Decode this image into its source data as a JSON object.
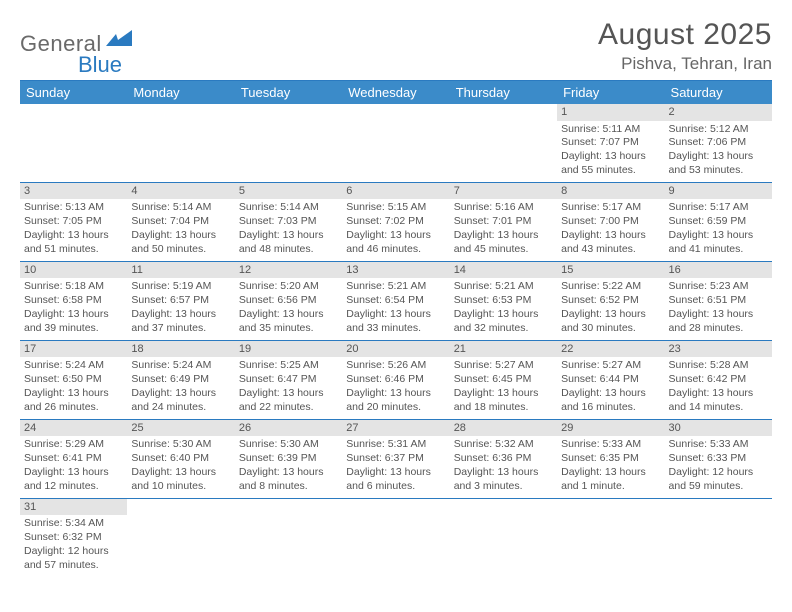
{
  "brand": {
    "part1": "General",
    "part2": "Blue"
  },
  "title": "August 2025",
  "location": "Pishva, Tehran, Iran",
  "colors": {
    "header_bg": "#3b8bc9",
    "accent": "#2a7ac0",
    "daynum_bg": "#e4e4e4",
    "text": "#5a5a5a"
  },
  "fonts": {
    "title_size": 30,
    "location_size": 17,
    "header_size": 13,
    "cell_size": 10.5
  },
  "weekdays": [
    "Sunday",
    "Monday",
    "Tuesday",
    "Wednesday",
    "Thursday",
    "Friday",
    "Saturday"
  ],
  "weeks": [
    [
      null,
      null,
      null,
      null,
      null,
      {
        "d": "1",
        "sr": "Sunrise: 5:11 AM",
        "ss": "Sunset: 7:07 PM",
        "dl1": "Daylight: 13 hours",
        "dl2": "and 55 minutes."
      },
      {
        "d": "2",
        "sr": "Sunrise: 5:12 AM",
        "ss": "Sunset: 7:06 PM",
        "dl1": "Daylight: 13 hours",
        "dl2": "and 53 minutes."
      }
    ],
    [
      {
        "d": "3",
        "sr": "Sunrise: 5:13 AM",
        "ss": "Sunset: 7:05 PM",
        "dl1": "Daylight: 13 hours",
        "dl2": "and 51 minutes."
      },
      {
        "d": "4",
        "sr": "Sunrise: 5:14 AM",
        "ss": "Sunset: 7:04 PM",
        "dl1": "Daylight: 13 hours",
        "dl2": "and 50 minutes."
      },
      {
        "d": "5",
        "sr": "Sunrise: 5:14 AM",
        "ss": "Sunset: 7:03 PM",
        "dl1": "Daylight: 13 hours",
        "dl2": "and 48 minutes."
      },
      {
        "d": "6",
        "sr": "Sunrise: 5:15 AM",
        "ss": "Sunset: 7:02 PM",
        "dl1": "Daylight: 13 hours",
        "dl2": "and 46 minutes."
      },
      {
        "d": "7",
        "sr": "Sunrise: 5:16 AM",
        "ss": "Sunset: 7:01 PM",
        "dl1": "Daylight: 13 hours",
        "dl2": "and 45 minutes."
      },
      {
        "d": "8",
        "sr": "Sunrise: 5:17 AM",
        "ss": "Sunset: 7:00 PM",
        "dl1": "Daylight: 13 hours",
        "dl2": "and 43 minutes."
      },
      {
        "d": "9",
        "sr": "Sunrise: 5:17 AM",
        "ss": "Sunset: 6:59 PM",
        "dl1": "Daylight: 13 hours",
        "dl2": "and 41 minutes."
      }
    ],
    [
      {
        "d": "10",
        "sr": "Sunrise: 5:18 AM",
        "ss": "Sunset: 6:58 PM",
        "dl1": "Daylight: 13 hours",
        "dl2": "and 39 minutes."
      },
      {
        "d": "11",
        "sr": "Sunrise: 5:19 AM",
        "ss": "Sunset: 6:57 PM",
        "dl1": "Daylight: 13 hours",
        "dl2": "and 37 minutes."
      },
      {
        "d": "12",
        "sr": "Sunrise: 5:20 AM",
        "ss": "Sunset: 6:56 PM",
        "dl1": "Daylight: 13 hours",
        "dl2": "and 35 minutes."
      },
      {
        "d": "13",
        "sr": "Sunrise: 5:21 AM",
        "ss": "Sunset: 6:54 PM",
        "dl1": "Daylight: 13 hours",
        "dl2": "and 33 minutes."
      },
      {
        "d": "14",
        "sr": "Sunrise: 5:21 AM",
        "ss": "Sunset: 6:53 PM",
        "dl1": "Daylight: 13 hours",
        "dl2": "and 32 minutes."
      },
      {
        "d": "15",
        "sr": "Sunrise: 5:22 AM",
        "ss": "Sunset: 6:52 PM",
        "dl1": "Daylight: 13 hours",
        "dl2": "and 30 minutes."
      },
      {
        "d": "16",
        "sr": "Sunrise: 5:23 AM",
        "ss": "Sunset: 6:51 PM",
        "dl1": "Daylight: 13 hours",
        "dl2": "and 28 minutes."
      }
    ],
    [
      {
        "d": "17",
        "sr": "Sunrise: 5:24 AM",
        "ss": "Sunset: 6:50 PM",
        "dl1": "Daylight: 13 hours",
        "dl2": "and 26 minutes."
      },
      {
        "d": "18",
        "sr": "Sunrise: 5:24 AM",
        "ss": "Sunset: 6:49 PM",
        "dl1": "Daylight: 13 hours",
        "dl2": "and 24 minutes."
      },
      {
        "d": "19",
        "sr": "Sunrise: 5:25 AM",
        "ss": "Sunset: 6:47 PM",
        "dl1": "Daylight: 13 hours",
        "dl2": "and 22 minutes."
      },
      {
        "d": "20",
        "sr": "Sunrise: 5:26 AM",
        "ss": "Sunset: 6:46 PM",
        "dl1": "Daylight: 13 hours",
        "dl2": "and 20 minutes."
      },
      {
        "d": "21",
        "sr": "Sunrise: 5:27 AM",
        "ss": "Sunset: 6:45 PM",
        "dl1": "Daylight: 13 hours",
        "dl2": "and 18 minutes."
      },
      {
        "d": "22",
        "sr": "Sunrise: 5:27 AM",
        "ss": "Sunset: 6:44 PM",
        "dl1": "Daylight: 13 hours",
        "dl2": "and 16 minutes."
      },
      {
        "d": "23",
        "sr": "Sunrise: 5:28 AM",
        "ss": "Sunset: 6:42 PM",
        "dl1": "Daylight: 13 hours",
        "dl2": "and 14 minutes."
      }
    ],
    [
      {
        "d": "24",
        "sr": "Sunrise: 5:29 AM",
        "ss": "Sunset: 6:41 PM",
        "dl1": "Daylight: 13 hours",
        "dl2": "and 12 minutes."
      },
      {
        "d": "25",
        "sr": "Sunrise: 5:30 AM",
        "ss": "Sunset: 6:40 PM",
        "dl1": "Daylight: 13 hours",
        "dl2": "and 10 minutes."
      },
      {
        "d": "26",
        "sr": "Sunrise: 5:30 AM",
        "ss": "Sunset: 6:39 PM",
        "dl1": "Daylight: 13 hours",
        "dl2": "and 8 minutes."
      },
      {
        "d": "27",
        "sr": "Sunrise: 5:31 AM",
        "ss": "Sunset: 6:37 PM",
        "dl1": "Daylight: 13 hours",
        "dl2": "and 6 minutes."
      },
      {
        "d": "28",
        "sr": "Sunrise: 5:32 AM",
        "ss": "Sunset: 6:36 PM",
        "dl1": "Daylight: 13 hours",
        "dl2": "and 3 minutes."
      },
      {
        "d": "29",
        "sr": "Sunrise: 5:33 AM",
        "ss": "Sunset: 6:35 PM",
        "dl1": "Daylight: 13 hours",
        "dl2": "and 1 minute."
      },
      {
        "d": "30",
        "sr": "Sunrise: 5:33 AM",
        "ss": "Sunset: 6:33 PM",
        "dl1": "Daylight: 12 hours",
        "dl2": "and 59 minutes."
      }
    ],
    [
      {
        "d": "31",
        "sr": "Sunrise: 5:34 AM",
        "ss": "Sunset: 6:32 PM",
        "dl1": "Daylight: 12 hours",
        "dl2": "and 57 minutes."
      },
      null,
      null,
      null,
      null,
      null,
      null
    ]
  ]
}
